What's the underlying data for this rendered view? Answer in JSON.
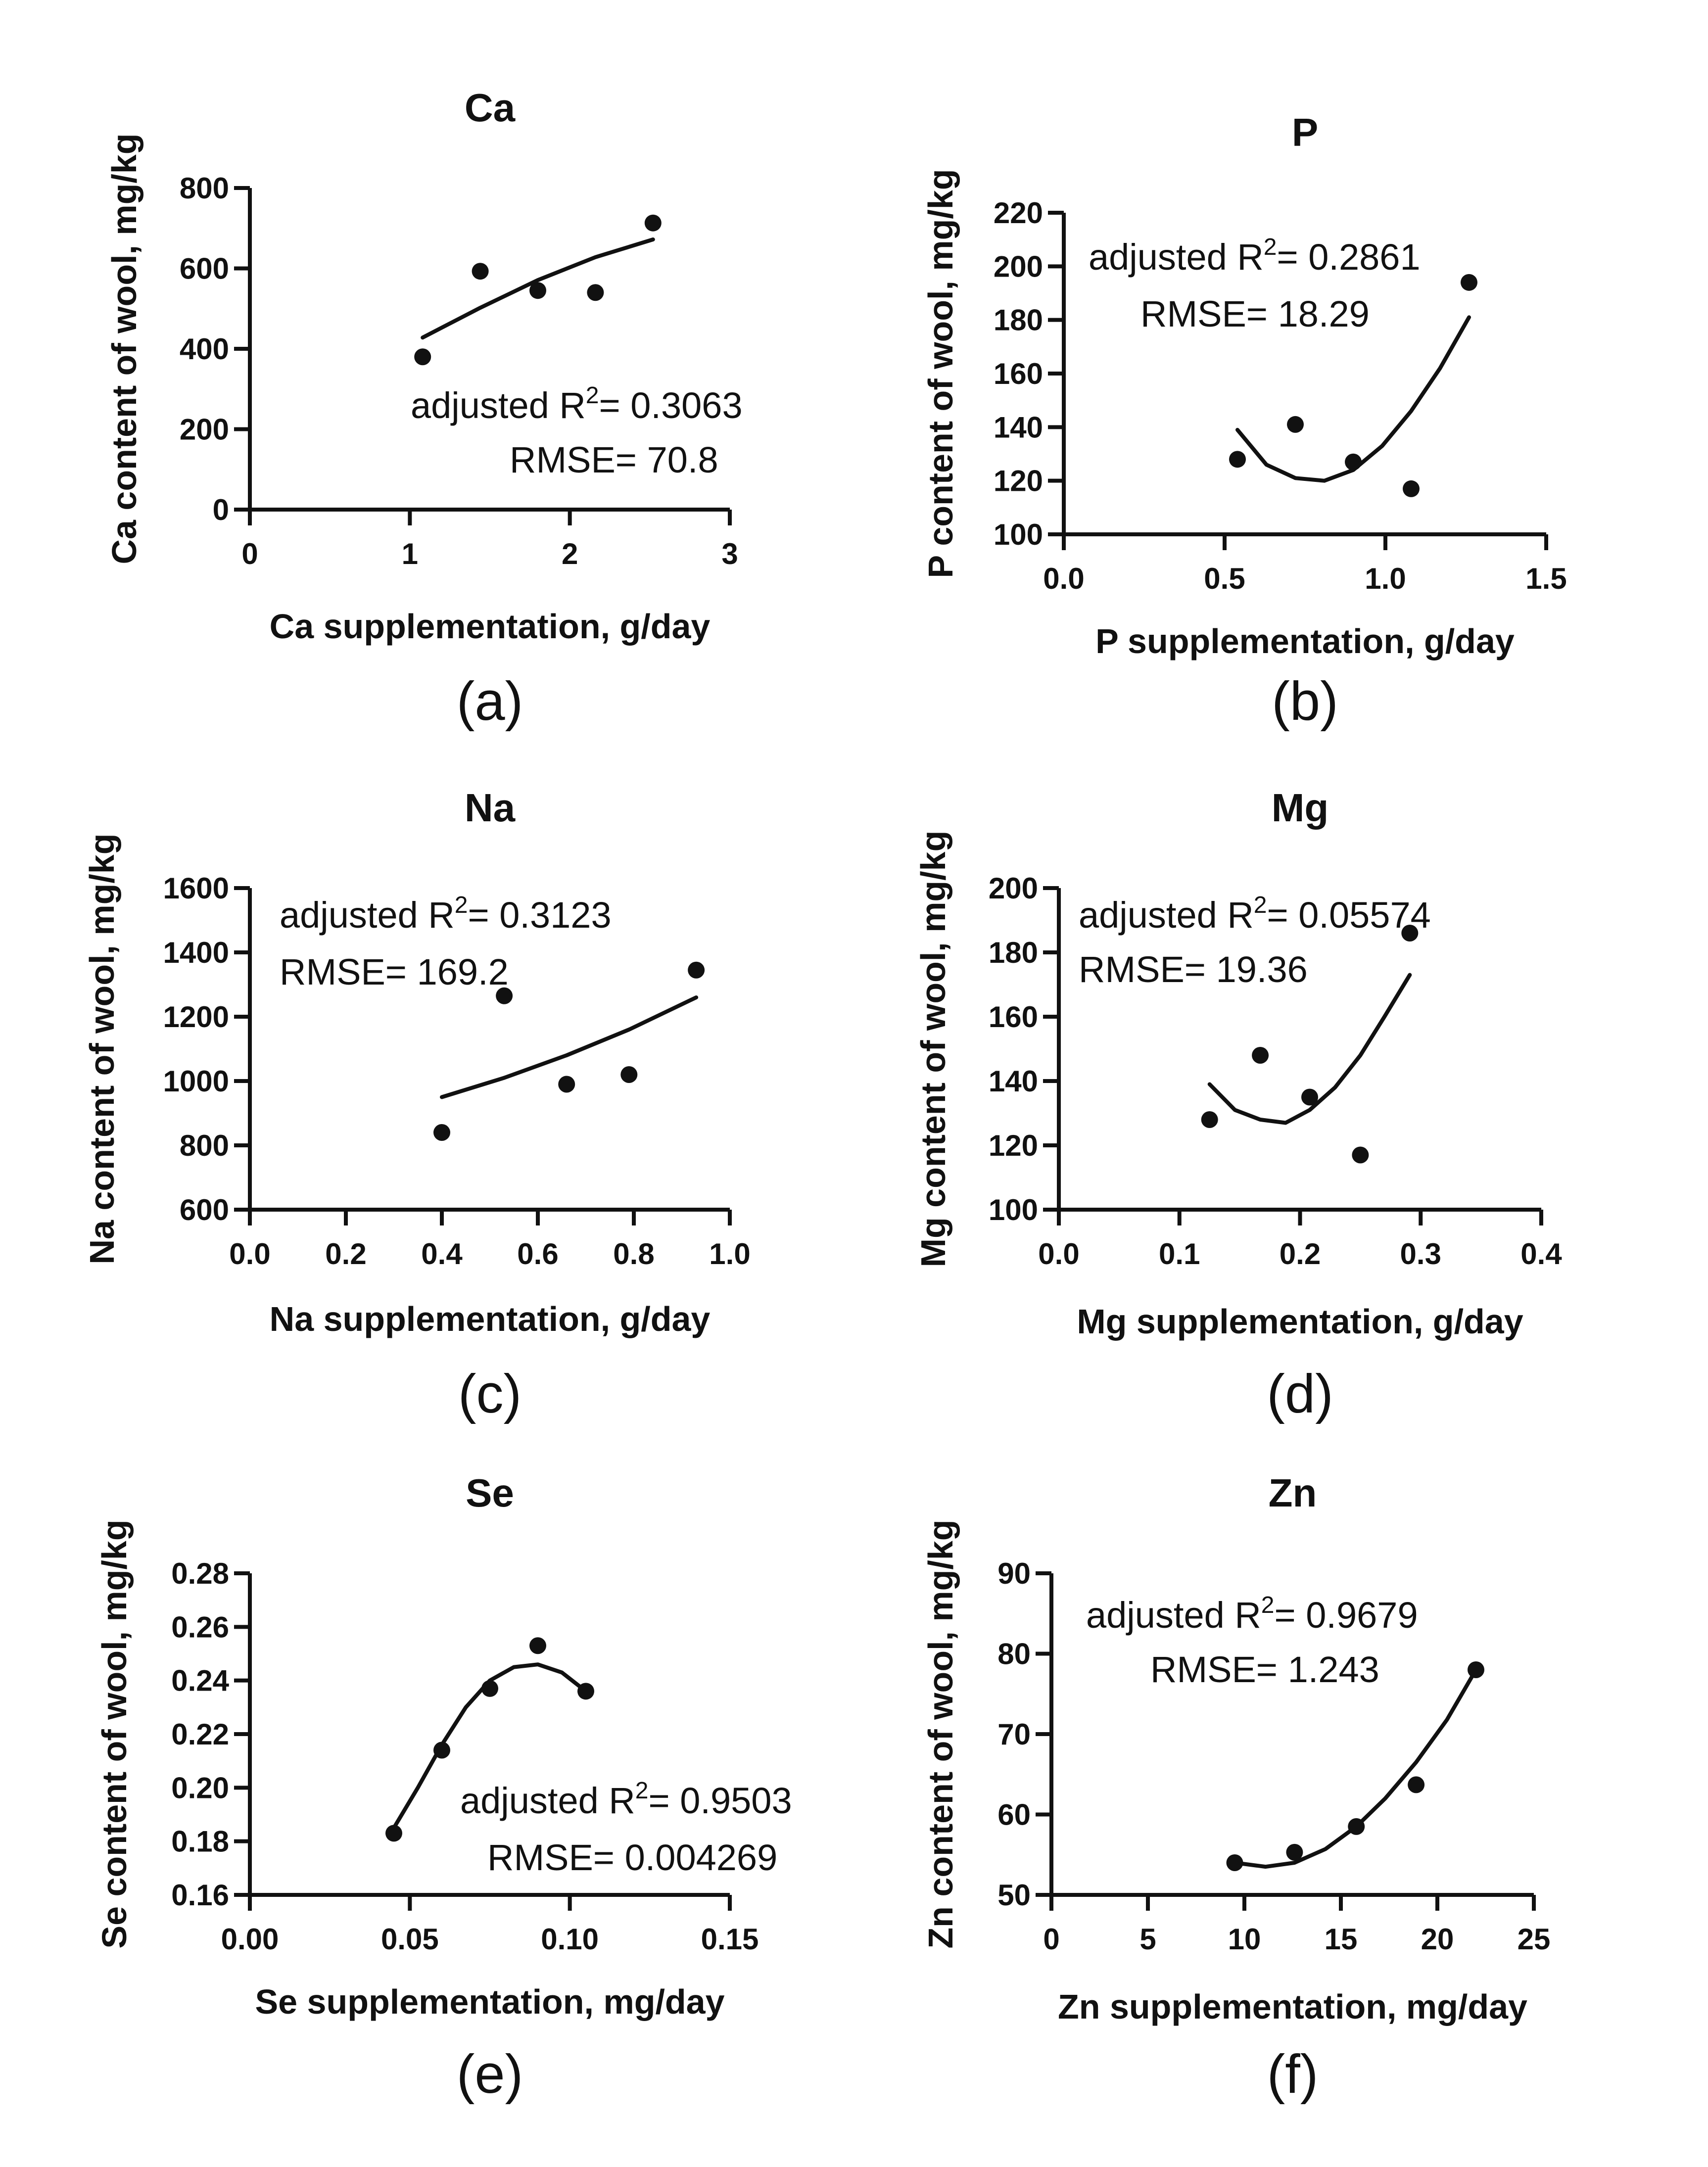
{
  "chart_data": [
    {
      "type": "scatter",
      "title": "Ca",
      "panel_label": "(a)",
      "xlabel": "Ca supplementation, g/day",
      "ylabel": "Ca content of wool, mg/kg",
      "xlim": [
        0,
        3
      ],
      "ylim": [
        0,
        800
      ],
      "xticks": [
        0,
        1,
        2,
        3
      ],
      "xtick_labels": [
        "0",
        "1",
        "2",
        "3"
      ],
      "yticks": [
        0,
        200,
        400,
        600,
        800
      ],
      "ytick_labels": [
        "0",
        "200",
        "400",
        "600",
        "800"
      ],
      "points": [
        {
          "x": 1.08,
          "y": 380
        },
        {
          "x": 1.44,
          "y": 593
        },
        {
          "x": 1.8,
          "y": 545
        },
        {
          "x": 2.16,
          "y": 540
        },
        {
          "x": 2.52,
          "y": 713
        }
      ],
      "fit": {
        "shape": "curve",
        "x": [
          1.08,
          1.44,
          1.8,
          2.16,
          2.52
        ],
        "y": [
          428,
          502,
          571,
          628,
          672
        ]
      },
      "annotation": {
        "label": "adjusted R",
        "sup": "2",
        "value": "= 0.3063",
        "rmse": "RMSE= 70.8"
      },
      "grid": false
    },
    {
      "type": "scatter",
      "title": "P",
      "panel_label": "(b)",
      "xlabel": "P supplementation, g/day",
      "ylabel": "P content of wool, mg/kg",
      "xlim": [
        0,
        1.5
      ],
      "ylim": [
        100,
        220
      ],
      "xticks": [
        0,
        0.5,
        1.0,
        1.5
      ],
      "xtick_labels": [
        "0.0",
        "0.5",
        "1.0",
        "1.5"
      ],
      "yticks": [
        100,
        120,
        140,
        160,
        180,
        200,
        220
      ],
      "ytick_labels": [
        "100",
        "120",
        "140",
        "160",
        "180",
        "200",
        "220"
      ],
      "points": [
        {
          "x": 0.54,
          "y": 128
        },
        {
          "x": 0.72,
          "y": 141
        },
        {
          "x": 0.9,
          "y": 127
        },
        {
          "x": 1.08,
          "y": 117
        },
        {
          "x": 1.26,
          "y": 194
        }
      ],
      "fit": {
        "shape": "curve",
        "x": [
          0.54,
          0.63,
          0.72,
          0.81,
          0.9,
          0.99,
          1.08,
          1.17,
          1.26
        ],
        "y": [
          139,
          126,
          121,
          120,
          124,
          133,
          146,
          162,
          181
        ]
      },
      "annotation": {
        "label": "adjusted R",
        "sup": "2",
        "value": "= 0.2861",
        "rmse": "RMSE= 18.29"
      },
      "grid": false
    },
    {
      "type": "scatter",
      "title": "Na",
      "panel_label": "(c)",
      "xlabel": "Na supplementation, g/day",
      "ylabel": "Na content of wool, mg/kg",
      "xlim": [
        0,
        1.0
      ],
      "ylim": [
        600,
        1600
      ],
      "xticks": [
        0,
        0.2,
        0.4,
        0.6,
        0.8,
        1.0
      ],
      "xtick_labels": [
        "0.0",
        "0.2",
        "0.4",
        "0.6",
        "0.8",
        "1.0"
      ],
      "yticks": [
        600,
        800,
        1000,
        1200,
        1400,
        1600
      ],
      "ytick_labels": [
        "600",
        "800",
        "1000",
        "1200",
        "1400",
        "1600"
      ],
      "points": [
        {
          "x": 0.4,
          "y": 840
        },
        {
          "x": 0.53,
          "y": 1265
        },
        {
          "x": 0.66,
          "y": 990
        },
        {
          "x": 0.79,
          "y": 1020
        },
        {
          "x": 0.93,
          "y": 1345
        }
      ],
      "fit": {
        "shape": "curve",
        "x": [
          0.4,
          0.53,
          0.66,
          0.79,
          0.93
        ],
        "y": [
          950,
          1010,
          1080,
          1160,
          1260
        ]
      },
      "annotation": {
        "label": "adjusted R",
        "sup": "2",
        "value": "= 0.3123",
        "rmse": "RMSE= 169.2"
      },
      "grid": false
    },
    {
      "type": "scatter",
      "title": "Mg",
      "panel_label": "(d)",
      "xlabel": "Mg supplementation, g/day",
      "ylabel": "Mg content of wool, mg/kg",
      "xlim": [
        0,
        0.4
      ],
      "ylim": [
        100,
        200
      ],
      "xticks": [
        0,
        0.1,
        0.2,
        0.3,
        0.4
      ],
      "xtick_labels": [
        "0.0",
        "0.1",
        "0.2",
        "0.3",
        "0.4"
      ],
      "yticks": [
        100,
        120,
        140,
        160,
        180,
        200
      ],
      "ytick_labels": [
        "100",
        "120",
        "140",
        "160",
        "180",
        "200"
      ],
      "points": [
        {
          "x": 0.125,
          "y": 128
        },
        {
          "x": 0.167,
          "y": 148
        },
        {
          "x": 0.208,
          "y": 135
        },
        {
          "x": 0.25,
          "y": 117
        },
        {
          "x": 0.291,
          "y": 186
        }
      ],
      "fit": {
        "shape": "curve",
        "x": [
          0.125,
          0.146,
          0.167,
          0.188,
          0.208,
          0.229,
          0.25,
          0.27,
          0.291
        ],
        "y": [
          139,
          131,
          128,
          127,
          131,
          138,
          148,
          160,
          173
        ]
      },
      "annotation": {
        "label": "adjusted R",
        "sup": "2",
        "value": "= 0.05574",
        "rmse": "RMSE= 19.36"
      },
      "grid": false
    },
    {
      "type": "scatter",
      "title": "Se",
      "panel_label": "(e)",
      "xlabel": "Se supplementation, mg/day",
      "ylabel": "Se content of wool, mg/kg",
      "xlim": [
        0,
        0.15
      ],
      "ylim": [
        0.16,
        0.28
      ],
      "xticks": [
        0,
        0.05,
        0.1,
        0.15
      ],
      "xtick_labels": [
        "0.00",
        "0.05",
        "0.10",
        "0.15"
      ],
      "yticks": [
        0.16,
        0.18,
        0.2,
        0.22,
        0.24,
        0.26,
        0.28
      ],
      "ytick_labels": [
        "0.16",
        "0.18",
        "0.20",
        "0.22",
        "0.24",
        "0.26",
        "0.28"
      ],
      "points": [
        {
          "x": 0.045,
          "y": 0.183
        },
        {
          "x": 0.06,
          "y": 0.214
        },
        {
          "x": 0.075,
          "y": 0.237
        },
        {
          "x": 0.09,
          "y": 0.253
        },
        {
          "x": 0.105,
          "y": 0.236
        }
      ],
      "fit": {
        "shape": "curve",
        "x": [
          0.045,
          0.0525,
          0.06,
          0.0675,
          0.075,
          0.0825,
          0.09,
          0.0975,
          0.105
        ],
        "y": [
          0.185,
          0.2,
          0.216,
          0.23,
          0.24,
          0.245,
          0.246,
          0.243,
          0.236
        ]
      },
      "annotation": {
        "label": "adjusted R",
        "sup": "2",
        "value": "= 0.9503",
        "rmse": "RMSE= 0.004269"
      },
      "grid": false
    },
    {
      "type": "scatter",
      "title": "Zn",
      "panel_label": "(f)",
      "xlabel": "Zn supplementation, mg/day",
      "ylabel": "Zn content of wool, mg/kg",
      "xlim": [
        0,
        25
      ],
      "ylim": [
        50,
        90
      ],
      "xticks": [
        0,
        5,
        10,
        15,
        20,
        25
      ],
      "xtick_labels": [
        "0",
        "5",
        "10",
        "15",
        "20",
        "25"
      ],
      "yticks": [
        50,
        60,
        70,
        80,
        90
      ],
      "ytick_labels": [
        "50",
        "60",
        "70",
        "80",
        "90"
      ],
      "points": [
        {
          "x": 9.5,
          "y": 54
        },
        {
          "x": 12.6,
          "y": 55.3
        },
        {
          "x": 15.8,
          "y": 58.5
        },
        {
          "x": 18.9,
          "y": 63.7
        },
        {
          "x": 22.0,
          "y": 78
        }
      ],
      "fit": {
        "shape": "curve",
        "x": [
          9.5,
          11.1,
          12.6,
          14.2,
          15.8,
          17.3,
          18.9,
          20.5,
          22.0
        ],
        "y": [
          54,
          53.5,
          54,
          55.7,
          58.5,
          62,
          66.5,
          71.8,
          78
        ]
      },
      "annotation": {
        "label": "adjusted R",
        "sup": "2",
        "value": "= 0.9679",
        "rmse": "RMSE= 1.243"
      },
      "grid": false
    }
  ]
}
